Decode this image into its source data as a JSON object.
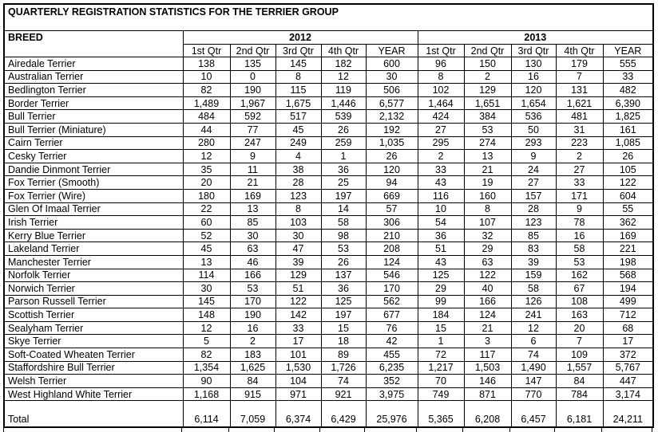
{
  "title": "QUARTERLY REGISTRATION STATISTICS FOR THE TERRIER GROUP",
  "table": {
    "breed_header": "BREED",
    "year_groups": [
      {
        "year": "2012",
        "columns": [
          "1st Qtr",
          "2nd Qtr",
          "3rd Qtr",
          "4th Qtr",
          "YEAR"
        ]
      },
      {
        "year": "2013",
        "columns": [
          "1st Qtr",
          "2nd Qtr",
          "3rd Qtr",
          "4th Qtr",
          "YEAR"
        ]
      }
    ],
    "rows": [
      {
        "breed": "Airedale Terrier",
        "y2012": [
          "138",
          "135",
          "145",
          "182",
          "600"
        ],
        "y2013": [
          "96",
          "150",
          "130",
          "179",
          "555"
        ]
      },
      {
        "breed": "Australian Terrier",
        "y2012": [
          "10",
          "0",
          "8",
          "12",
          "30"
        ],
        "y2013": [
          "8",
          "2",
          "16",
          "7",
          "33"
        ]
      },
      {
        "breed": "Bedlington Terrier",
        "y2012": [
          "82",
          "190",
          "115",
          "119",
          "506"
        ],
        "y2013": [
          "102",
          "129",
          "120",
          "131",
          "482"
        ]
      },
      {
        "breed": "Border Terrier",
        "y2012": [
          "1,489",
          "1,967",
          "1,675",
          "1,446",
          "6,577"
        ],
        "y2013": [
          "1,464",
          "1,651",
          "1,654",
          "1,621",
          "6,390"
        ]
      },
      {
        "breed": "Bull Terrier",
        "y2012": [
          "484",
          "592",
          "517",
          "539",
          "2,132"
        ],
        "y2013": [
          "424",
          "384",
          "536",
          "481",
          "1,825"
        ]
      },
      {
        "breed": "Bull Terrier (Miniature)",
        "y2012": [
          "44",
          "77",
          "45",
          "26",
          "192"
        ],
        "y2013": [
          "27",
          "53",
          "50",
          "31",
          "161"
        ]
      },
      {
        "breed": "Cairn Terrier",
        "y2012": [
          "280",
          "247",
          "249",
          "259",
          "1,035"
        ],
        "y2013": [
          "295",
          "274",
          "293",
          "223",
          "1,085"
        ]
      },
      {
        "breed": "Cesky Terrier",
        "y2012": [
          "12",
          "9",
          "4",
          "1",
          "26"
        ],
        "y2013": [
          "2",
          "13",
          "9",
          "2",
          "26"
        ]
      },
      {
        "breed": "Dandie Dinmont Terrier",
        "y2012": [
          "35",
          "11",
          "38",
          "36",
          "120"
        ],
        "y2013": [
          "33",
          "21",
          "24",
          "27",
          "105"
        ]
      },
      {
        "breed": "Fox Terrier (Smooth)",
        "y2012": [
          "20",
          "21",
          "28",
          "25",
          "94"
        ],
        "y2013": [
          "43",
          "19",
          "27",
          "33",
          "122"
        ]
      },
      {
        "breed": "Fox Terrier (Wire)",
        "y2012": [
          "180",
          "169",
          "123",
          "197",
          "669"
        ],
        "y2013": [
          "116",
          "160",
          "157",
          "171",
          "604"
        ]
      },
      {
        "breed": "Glen Of Imaal Terrier",
        "y2012": [
          "22",
          "13",
          "8",
          "14",
          "57"
        ],
        "y2013": [
          "10",
          "8",
          "28",
          "9",
          "55"
        ]
      },
      {
        "breed": "Irish Terrier",
        "y2012": [
          "60",
          "85",
          "103",
          "58",
          "306"
        ],
        "y2013": [
          "54",
          "107",
          "123",
          "78",
          "362"
        ]
      },
      {
        "breed": "Kerry Blue Terrier",
        "y2012": [
          "52",
          "30",
          "30",
          "98",
          "210"
        ],
        "y2013": [
          "36",
          "32",
          "85",
          "16",
          "169"
        ]
      },
      {
        "breed": "Lakeland Terrier",
        "y2012": [
          "45",
          "63",
          "47",
          "53",
          "208"
        ],
        "y2013": [
          "51",
          "29",
          "83",
          "58",
          "221"
        ]
      },
      {
        "breed": "Manchester Terrier",
        "y2012": [
          "13",
          "46",
          "39",
          "26",
          "124"
        ],
        "y2013": [
          "43",
          "63",
          "39",
          "53",
          "198"
        ]
      },
      {
        "breed": "Norfolk Terrier",
        "y2012": [
          "114",
          "166",
          "129",
          "137",
          "546"
        ],
        "y2013": [
          "125",
          "122",
          "159",
          "162",
          "568"
        ]
      },
      {
        "breed": "Norwich Terrier",
        "y2012": [
          "30",
          "53",
          "51",
          "36",
          "170"
        ],
        "y2013": [
          "29",
          "40",
          "58",
          "67",
          "194"
        ]
      },
      {
        "breed": "Parson Russell Terrier",
        "y2012": [
          "145",
          "170",
          "122",
          "125",
          "562"
        ],
        "y2013": [
          "99",
          "166",
          "126",
          "108",
          "499"
        ]
      },
      {
        "breed": "Scottish Terrier",
        "y2012": [
          "148",
          "190",
          "142",
          "197",
          "677"
        ],
        "y2013": [
          "184",
          "124",
          "241",
          "163",
          "712"
        ]
      },
      {
        "breed": "Sealyham Terrier",
        "y2012": [
          "12",
          "16",
          "33",
          "15",
          "76"
        ],
        "y2013": [
          "15",
          "21",
          "12",
          "20",
          "68"
        ]
      },
      {
        "breed": "Skye Terrier",
        "y2012": [
          "5",
          "2",
          "17",
          "18",
          "42"
        ],
        "y2013": [
          "1",
          "3",
          "6",
          "7",
          "17"
        ]
      },
      {
        "breed": "Soft-Coated Wheaten Terrier",
        "y2012": [
          "82",
          "183",
          "101",
          "89",
          "455"
        ],
        "y2013": [
          "72",
          "117",
          "74",
          "109",
          "372"
        ]
      },
      {
        "breed": "Staffordshire Bull Terrier",
        "y2012": [
          "1,354",
          "1,625",
          "1,530",
          "1,726",
          "6,235"
        ],
        "y2013": [
          "1,217",
          "1,503",
          "1,490",
          "1,557",
          "5,767"
        ]
      },
      {
        "breed": "Welsh Terrier",
        "y2012": [
          "90",
          "84",
          "104",
          "74",
          "352"
        ],
        "y2013": [
          "70",
          "146",
          "147",
          "84",
          "447"
        ]
      },
      {
        "breed": "West Highland White Terrier",
        "y2012": [
          "1,168",
          "915",
          "971",
          "921",
          "3,975"
        ],
        "y2013": [
          "749",
          "871",
          "770",
          "784",
          "3,174"
        ]
      }
    ],
    "total": {
      "label": "Total",
      "y2012": [
        "6,114",
        "7,059",
        "6,374",
        "6,429",
        "25,976"
      ],
      "y2013": [
        "5,365",
        "6,208",
        "6,457",
        "6,181",
        "24,211"
      ]
    }
  },
  "colors": {
    "border": "#000000",
    "text": "#000000",
    "background": "#ffffff"
  }
}
